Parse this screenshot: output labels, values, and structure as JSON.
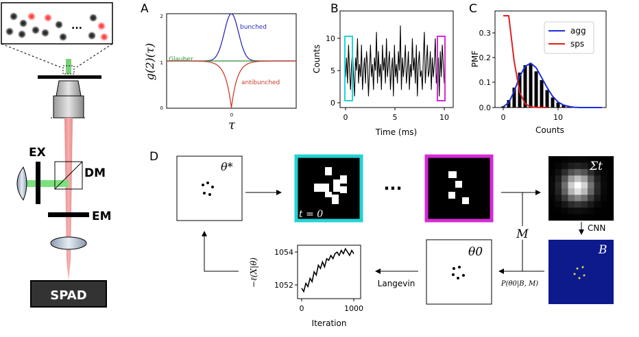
{
  "panels": {
    "A": "A",
    "B": "B",
    "C": "C",
    "D": "D"
  },
  "setup": {
    "dots_ellipsis": "...",
    "ex": "EX",
    "dm": "DM",
    "em": "EM",
    "spad": "SPAD"
  },
  "panel_a": {
    "ylabel": "g(2)(τ)",
    "xlabel": "τ",
    "ytick_2": "2",
    "ytick_1": "1",
    "ytick_0": "0",
    "xtick_0": "0",
    "label_bunched": "bunched",
    "label_glauber": "Glauber",
    "label_antibunched": "antibunched",
    "colors": {
      "bunched": "#2a2ab8",
      "glauber": "#2a8a2a",
      "antibunched": "#d03a2a"
    }
  },
  "panel_b": {
    "ylabel": "Counts",
    "xlabel": "Time (ms)",
    "yticks": [
      "0",
      "5",
      "10"
    ],
    "xticks": [
      "0",
      "5",
      "10"
    ],
    "highlight_colors": {
      "start": "#22d3d3",
      "end": "#d62ad6"
    }
  },
  "panel_c": {
    "ylabel": "PMF",
    "xlabel": "Counts",
    "yticks": [
      "0.0",
      "0.1",
      "0.2",
      "0.3"
    ],
    "xticks": [
      "0",
      "10"
    ],
    "legend": {
      "agg": "agg",
      "sps": "sps"
    }
  },
  "panel_d": {
    "theta_star": "θ*",
    "t0": "t = 0",
    "ellipsis": "···",
    "sigma_t": "Σt",
    "cnn": "CNN",
    "B": "B",
    "M": "M",
    "posterior": "P(θ0|B, M)",
    "theta0": "θ0",
    "langevin": "Langevin",
    "colors": {
      "cyan": "#22d3d3",
      "magenta": "#d62ad6",
      "navy": "#0c1a8c"
    },
    "inset": {
      "ylabel": "−ℓ(X|θ)",
      "xlabel": "Iteration",
      "yticks": [
        "1052",
        "1054"
      ],
      "xticks": [
        "0",
        "1000"
      ]
    }
  },
  "chart_data": [
    {
      "type": "line",
      "panel": "A",
      "title": "",
      "xlabel": "τ",
      "ylabel": "g(2)(τ)",
      "ylim": [
        0,
        2
      ],
      "series": [
        {
          "name": "bunched",
          "x": [
            -1,
            -0.5,
            -0.3,
            -0.15,
            0,
            0.15,
            0.3,
            0.5,
            1
          ],
          "values": [
            1,
            1,
            1.03,
            1.4,
            2.0,
            1.4,
            1.03,
            1,
            1
          ]
        },
        {
          "name": "Glauber",
          "x": [
            -1,
            0,
            1
          ],
          "values": [
            1,
            1,
            1
          ]
        },
        {
          "name": "antibunched",
          "x": [
            -1,
            -0.6,
            -0.3,
            -0.15,
            0,
            0.15,
            0.3,
            0.6,
            1
          ],
          "values": [
            1,
            0.99,
            0.9,
            0.62,
            0.0,
            0.62,
            0.9,
            0.99,
            1
          ]
        }
      ]
    },
    {
      "type": "line",
      "panel": "B",
      "title": "",
      "xlabel": "Time (ms)",
      "ylabel": "Counts",
      "xlim": [
        0,
        10
      ],
      "ylim": [
        0,
        12
      ],
      "series": [
        {
          "name": "",
          "values": [
            4,
            7,
            3,
            9,
            5,
            2,
            6,
            8,
            4,
            1,
            7,
            5,
            10,
            3,
            6,
            4,
            9,
            2,
            5,
            7,
            3,
            8,
            6,
            1,
            5,
            9,
            4,
            6,
            2,
            7,
            5,
            11,
            3,
            8,
            4,
            6,
            2,
            9,
            5,
            7,
            3,
            10,
            4,
            6,
            8,
            2,
            5,
            7,
            1,
            9,
            4,
            6,
            3,
            8,
            5,
            12,
            2,
            7,
            4,
            6,
            9,
            3,
            5,
            8,
            2,
            6,
            4,
            10,
            5,
            7,
            3,
            9,
            1,
            6,
            8,
            4,
            5,
            2,
            7,
            11,
            3,
            6,
            9,
            4,
            5,
            8,
            2,
            7,
            4,
            6,
            10,
            3,
            5,
            7,
            1,
            8,
            4,
            9,
            6,
            3
          ]
        }
      ]
    },
    {
      "type": "bar",
      "panel": "C",
      "title": "",
      "xlabel": "Counts",
      "ylabel": "PMF",
      "xlim": [
        -1,
        19
      ],
      "ylim": [
        0,
        0.38
      ],
      "categories": [
        0,
        1,
        2,
        3,
        4,
        5,
        6,
        7,
        8,
        9,
        10,
        11,
        12,
        13,
        14,
        15,
        16,
        17,
        18
      ],
      "series": [
        {
          "name": "",
          "values": [
            0.005,
            0.03,
            0.08,
            0.14,
            0.17,
            0.175,
            0.145,
            0.11,
            0.07,
            0.04,
            0.02,
            0.01,
            0.005,
            0.002,
            0,
            0,
            0,
            0,
            0
          ]
        },
        {
          "name": "agg",
          "x": [
            0,
            1,
            2,
            3,
            4,
            5,
            6,
            7,
            8,
            9,
            10,
            11,
            12,
            13,
            14,
            15,
            16,
            17,
            18
          ],
          "values": [
            0.003,
            0.02,
            0.065,
            0.125,
            0.165,
            0.178,
            0.16,
            0.12,
            0.08,
            0.045,
            0.022,
            0.01,
            0.004,
            0.001,
            0,
            0,
            0,
            0,
            0
          ]
        },
        {
          "name": "sps",
          "x": [
            0,
            1,
            2,
            3,
            4,
            5,
            6,
            8
          ],
          "values": [
            0.368,
            0.368,
            0.184,
            0.061,
            0.015,
            0.003,
            0.0005,
            0
          ]
        }
      ]
    },
    {
      "type": "line",
      "panel": "D-inset",
      "title": "",
      "xlabel": "Iteration",
      "ylabel": "−ℓ(X|θ)",
      "xlim": [
        0,
        1000
      ],
      "ylim": [
        1051.4,
        1054.5
      ],
      "series": [
        {
          "name": "",
          "x": [
            0,
            40,
            80,
            120,
            160,
            200,
            240,
            280,
            320,
            360,
            400,
            440,
            480,
            520,
            560,
            600,
            640,
            680,
            720,
            760,
            800,
            840,
            880,
            920,
            960,
            1000
          ],
          "values": [
            1051.8,
            1051.6,
            1052.1,
            1051.9,
            1052.4,
            1052.2,
            1052.8,
            1052.6,
            1053.2,
            1053.0,
            1053.4,
            1053.1,
            1053.6,
            1053.5,
            1053.8,
            1053.6,
            1053.9,
            1054.0,
            1053.8,
            1054.1,
            1053.9,
            1054.2,
            1054.0,
            1053.8,
            1054.1,
            1053.9
          ]
        }
      ]
    }
  ]
}
